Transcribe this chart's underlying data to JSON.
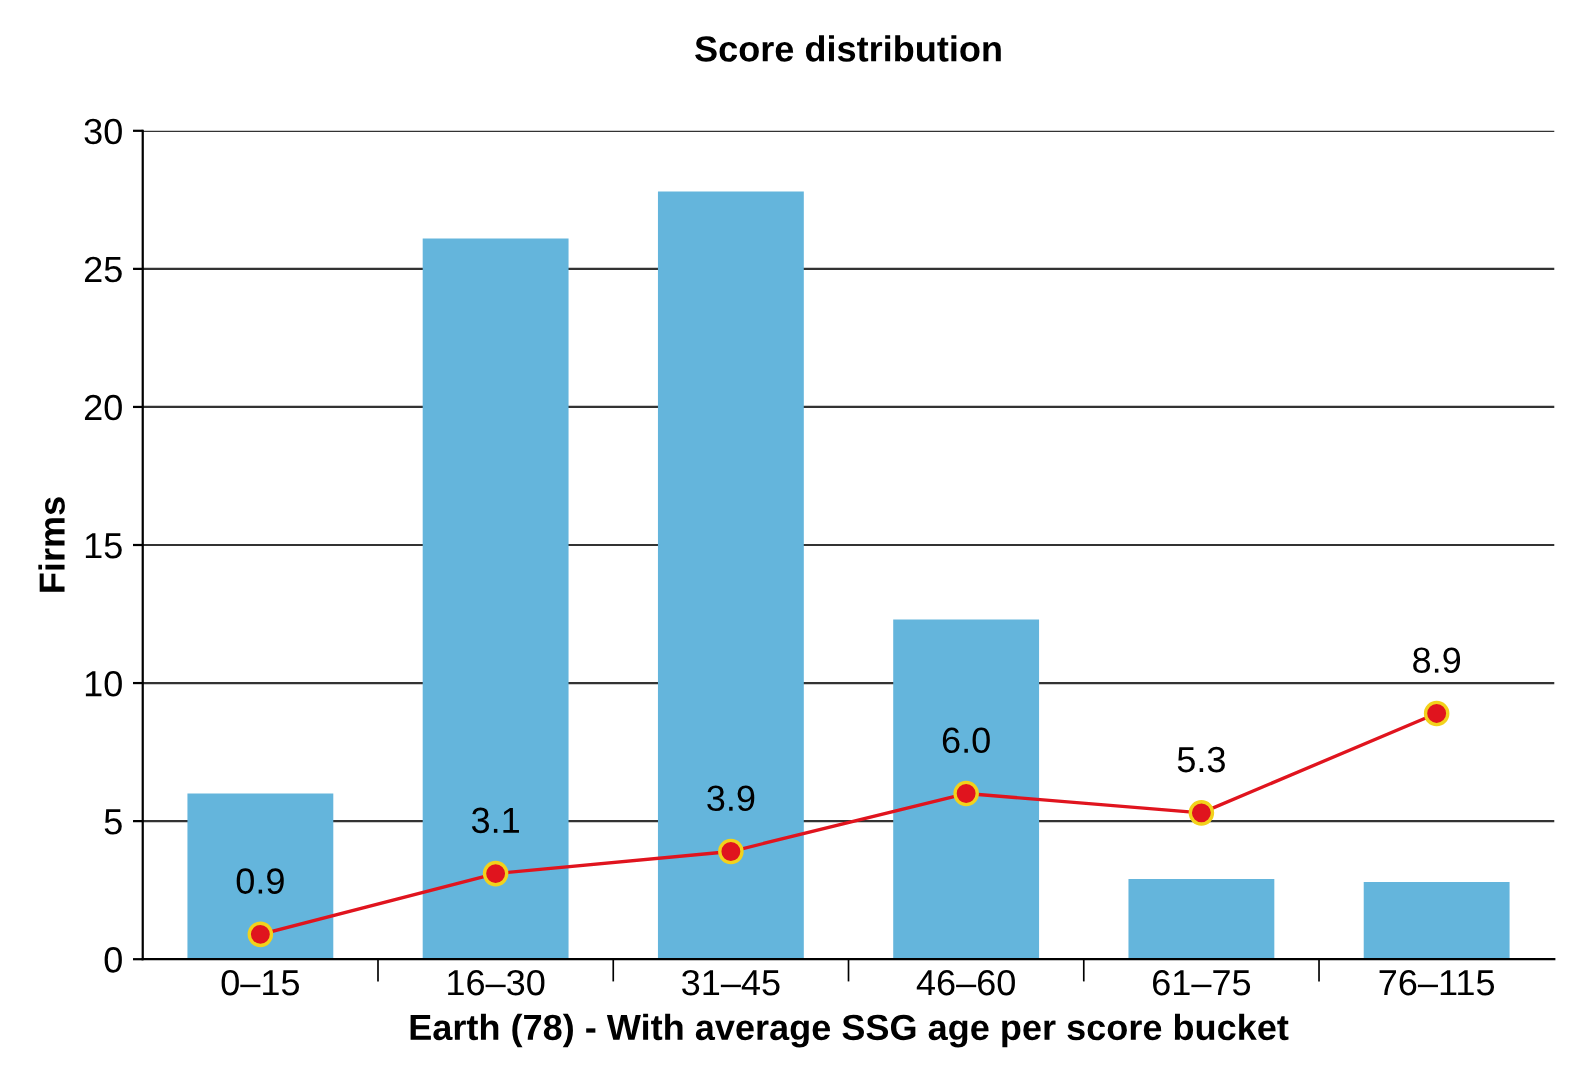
{
  "chart_data": {
    "type": "bar",
    "title": "Score distribution",
    "xlabel": "Earth (78) - With average SSG age per score bucket",
    "ylabel": "Firms",
    "categories": [
      "0–15",
      "16–30",
      "31–45",
      "46–60",
      "61–75",
      "76–115"
    ],
    "series": [
      {
        "color": "#64b5dc",
        "values": [
          6.0,
          26.1,
          27.8,
          12.3,
          2.9,
          2.8
        ]
      },
      {
        "type": "line",
        "color": "#e0141e",
        "values": [
          0.9,
          3.1,
          3.9,
          6.0,
          5.3,
          8.9
        ],
        "value_labels": [
          "0.9",
          "3.1",
          "3.9",
          "6.0",
          "5.3",
          "8.9"
        ],
        "marker": "circle"
      }
    ],
    "ylim": [
      0,
      30
    ],
    "yticks": [
      0,
      5,
      10,
      15,
      20,
      25,
      30
    ],
    "grid": "y",
    "legend": false
  }
}
